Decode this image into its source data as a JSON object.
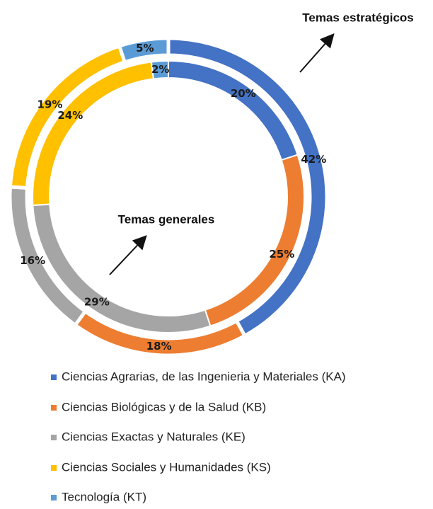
{
  "chart_data": {
    "type": "donut",
    "categories": [
      "Ciencias Agrarias, de las Ingenieria y Materiales (KA)",
      "Ciencias Biológicas y de la Salud (KB)",
      "Ciencias Exactas y Naturales (KE)",
      "Ciencias Sociales y Humanidades (KS)",
      "Tecnología (KT)"
    ],
    "colors": [
      "#4472c4",
      "#ed7d31",
      "#a5a5a5",
      "#ffc000",
      "#5b9bd5"
    ],
    "series": [
      {
        "name": "Temas estratégicos",
        "values": [
          42,
          18,
          16,
          19,
          5
        ],
        "value_labels": [
          "42%",
          "18%",
          "16%",
          "19%",
          "5%"
        ]
      },
      {
        "name": "Temas generales",
        "values": [
          20,
          25,
          29,
          24,
          2
        ],
        "value_labels": [
          "20%",
          "25%",
          "29%",
          "24%",
          "2%"
        ]
      }
    ]
  }
}
